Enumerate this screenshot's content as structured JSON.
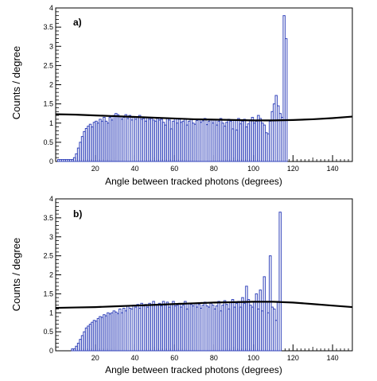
{
  "chart_data": [
    {
      "type": "line",
      "panel_label": "a)",
      "xlabel": "Angle between tracked photons (degrees)",
      "ylabel": "Counts / degree",
      "xlim": [
        0,
        150
      ],
      "ylim": [
        0,
        4
      ],
      "x_ticks": [
        20,
        40,
        60,
        80,
        100,
        120,
        140
      ],
      "y_ticks": [
        "0",
        "0.5",
        "1",
        "1.5",
        "2",
        "2.5",
        "3",
        "3.5",
        "4"
      ],
      "grid": false,
      "legend": "none",
      "series": [
        {
          "style": "histogram",
          "color": "#3344bb",
          "bin_width": 1,
          "bin_start": 1,
          "values": [
            0.05,
            0.05,
            0.05,
            0.05,
            0.05,
            0.05,
            0.05,
            0.05,
            0.1,
            0.2,
            0.35,
            0.5,
            0.65,
            0.78,
            0.86,
            0.92,
            0.97,
            0.9,
            1.02,
            1.05,
            1.0,
            1.1,
            1.05,
            1.15,
            1.05,
            1.0,
            1.15,
            1.08,
            1.2,
            1.25,
            1.22,
            1.18,
            1.1,
            1.15,
            1.22,
            1.12,
            1.2,
            1.08,
            1.15,
            1.1,
            1.15,
            1.2,
            1.1,
            1.12,
            1.05,
            1.15,
            1.1,
            1.12,
            1.08,
            1.05,
            1.12,
            1.08,
            1.1,
            1.02,
            0.95,
            1.12,
            1.08,
            0.85,
            1.05,
            1.12,
            1.0,
            1.1,
            1.02,
            1.05,
            1.12,
            0.95,
            1.05,
            1.1,
            1.0,
            0.97,
            1.07,
            1.1,
            1.02,
            1.06,
            1.12,
            0.96,
            1.05,
            1.1,
            1.0,
            1.08,
            0.95,
            1.05,
            1.12,
            1.0,
            0.92,
            1.02,
            1.1,
            1.05,
            0.85,
            1.08,
            0.82,
            1.12,
            0.98,
            1.05,
            1.1,
            0.9,
            0.98,
            1.08,
            1.15,
            1.0,
            1.05,
            1.2,
            1.12,
            1.0,
            0.95,
            0.75,
            0.72,
            1.05,
            1.3,
            1.5,
            1.72,
            1.45,
            1.25,
            1.15,
            3.8,
            3.2,
            0.0
          ]
        },
        {
          "style": "fit",
          "color": "#000000",
          "x": [
            0,
            10,
            20,
            30,
            40,
            50,
            60,
            70,
            80,
            90,
            100,
            110,
            120,
            130,
            140,
            150
          ],
          "values": [
            1.23,
            1.22,
            1.2,
            1.18,
            1.16,
            1.14,
            1.12,
            1.1,
            1.09,
            1.08,
            1.07,
            1.07,
            1.08,
            1.1,
            1.13,
            1.17
          ]
        }
      ]
    },
    {
      "type": "line",
      "panel_label": "b)",
      "xlabel": "Angle between tracked photons (degrees)",
      "ylabel": "Counts / degree",
      "xlim": [
        0,
        150
      ],
      "ylim": [
        0,
        4
      ],
      "x_ticks": [
        20,
        40,
        60,
        80,
        100,
        120,
        140
      ],
      "y_ticks": [
        "0",
        "0.5",
        "1",
        "1.5",
        "2",
        "2.5",
        "3",
        "3.5",
        "4"
      ],
      "grid": false,
      "legend": "none",
      "series": [
        {
          "style": "histogram",
          "color": "#3344bb",
          "bin_width": 1,
          "bin_start": 8,
          "values": [
            0.05,
            0.05,
            0.12,
            0.2,
            0.3,
            0.4,
            0.5,
            0.6,
            0.65,
            0.7,
            0.75,
            0.8,
            0.78,
            0.85,
            0.9,
            0.88,
            0.95,
            0.92,
            1.0,
            0.97,
            1.0,
            1.05,
            1.02,
            0.98,
            1.1,
            1.0,
            1.12,
            1.05,
            1.18,
            1.12,
            1.1,
            1.2,
            1.15,
            1.22,
            1.12,
            1.25,
            1.18,
            1.22,
            1.15,
            1.25,
            1.2,
            1.3,
            1.22,
            1.2,
            1.25,
            1.18,
            1.3,
            1.2,
            1.28,
            1.15,
            1.22,
            1.3,
            1.18,
            1.2,
            1.25,
            1.15,
            1.2,
            1.3,
            1.1,
            1.25,
            1.22,
            1.18,
            1.25,
            1.15,
            1.22,
            1.12,
            1.2,
            1.28,
            1.18,
            1.15,
            1.25,
            1.2,
            1.1,
            1.18,
            1.3,
            1.05,
            1.2,
            1.32,
            1.22,
            1.1,
            1.28,
            1.35,
            1.15,
            1.25,
            1.3,
            1.15,
            1.4,
            1.25,
            1.7,
            1.35,
            1.2,
            1.15,
            1.3,
            1.5,
            1.1,
            1.6,
            1.05,
            1.95,
            1.3,
            1.0,
            2.5,
            1.15,
            1.1,
            0.8,
            1.3,
            3.65,
            0.0,
            0.0
          ]
        },
        {
          "style": "fit",
          "color": "#000000",
          "x": [
            0,
            10,
            20,
            30,
            40,
            50,
            60,
            70,
            80,
            90,
            100,
            110,
            120,
            130,
            140,
            150
          ],
          "values": [
            1.13,
            1.14,
            1.15,
            1.17,
            1.19,
            1.21,
            1.23,
            1.25,
            1.27,
            1.28,
            1.29,
            1.29,
            1.27,
            1.23,
            1.19,
            1.15
          ]
        }
      ]
    }
  ]
}
